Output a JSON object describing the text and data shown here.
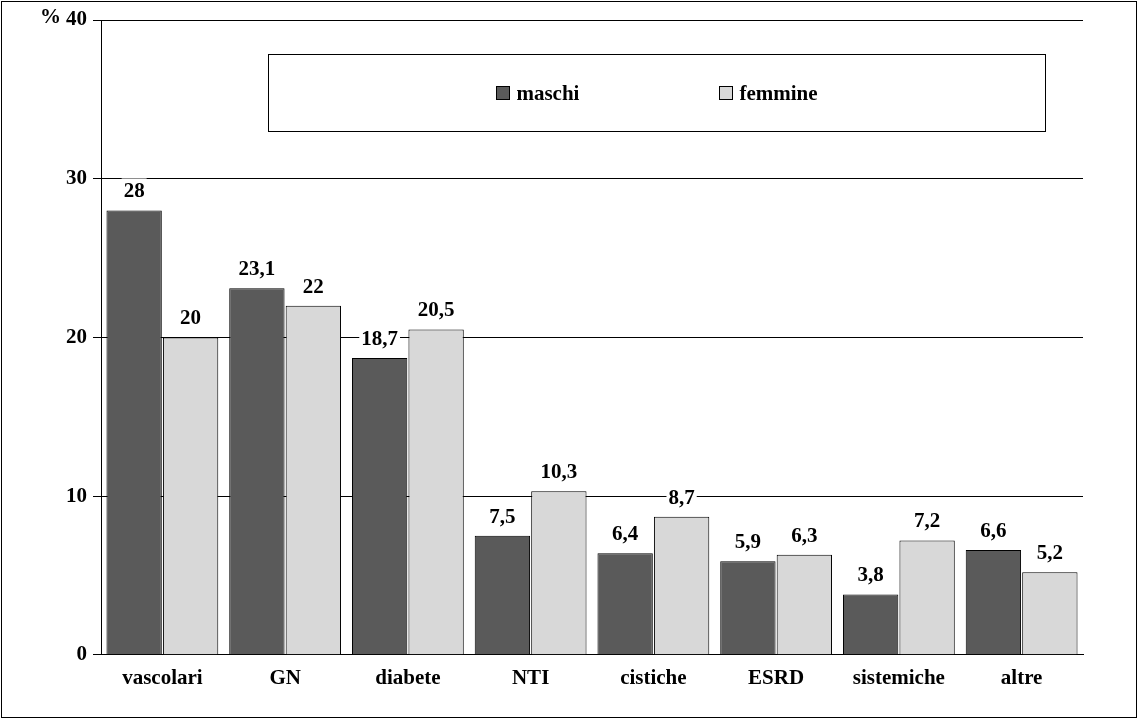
{
  "chart_data": {
    "type": "bar",
    "ylabel": "%",
    "categories": [
      "vascolari",
      "GN",
      "diabete",
      "NTI",
      "cistiche",
      "ESRD",
      "sistemiche",
      "altre"
    ],
    "series": [
      {
        "name": "maschi",
        "color": "#5a5a5a",
        "values": [
          28,
          23.1,
          18.7,
          7.5,
          6.4,
          5.9,
          3.8,
          6.6
        ],
        "value_labels": [
          "28",
          "23,1",
          "18,7",
          "7,5",
          "6,4",
          "5,9",
          "3,8",
          "6,6"
        ]
      },
      {
        "name": "femmine",
        "color": "#d8d8d8",
        "values": [
          20,
          22,
          20.5,
          10.3,
          8.7,
          6.3,
          7.2,
          5.2
        ],
        "value_labels": [
          "20",
          "22",
          "20,5",
          "10,3",
          "8,7",
          "6,3",
          "7,2",
          "5,2"
        ]
      }
    ],
    "ylim": [
      0,
      40
    ],
    "yticks": [
      0,
      10,
      20,
      30,
      40
    ],
    "grid": "y",
    "legend": "top"
  }
}
